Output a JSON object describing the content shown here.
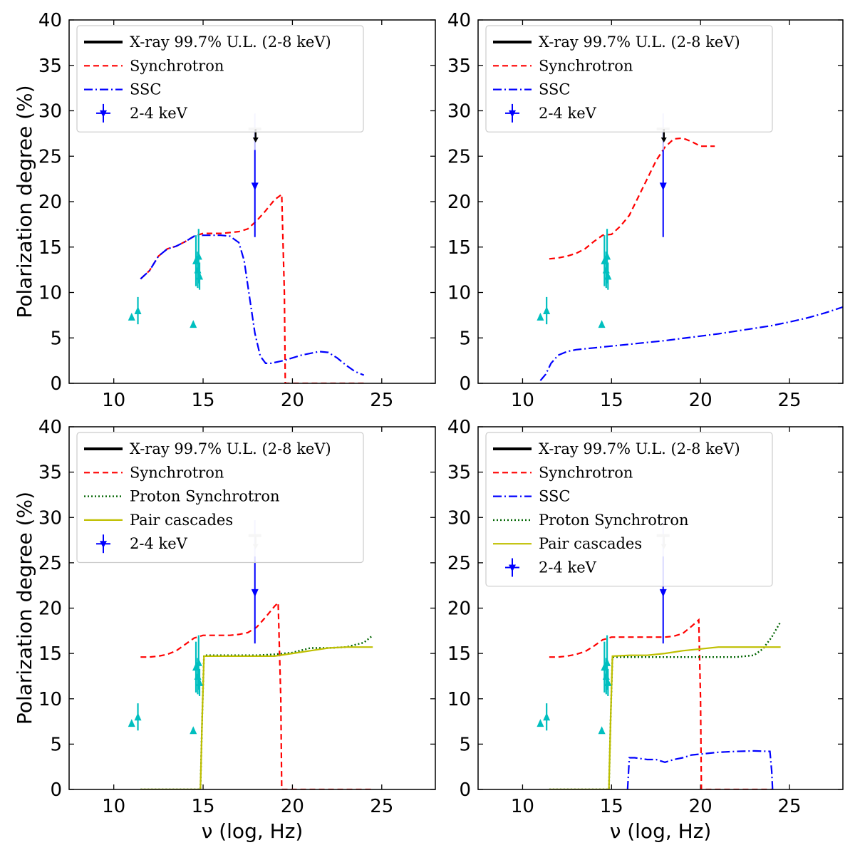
{
  "chart_data": [
    {
      "type": "line",
      "xlabel": "ν (log, Hz)",
      "ylabel": "Polarization degree (%)",
      "xlim": [
        7.5,
        28
      ],
      "ylim": [
        0,
        40
      ],
      "xticks": [
        10,
        15,
        20,
        25
      ],
      "yticks": [
        0,
        5,
        10,
        15,
        20,
        25,
        30,
        35,
        40
      ],
      "legend_position": "top-left",
      "legend": [
        {
          "label": "X-ray 99.7% U.L. (2-8 keV)",
          "style": "ul"
        },
        {
          "label": "Synchrotron",
          "style": "syn"
        },
        {
          "label": "SSC",
          "style": "ssc"
        },
        {
          "label": "2-4 keV",
          "style": "pt"
        }
      ],
      "series": [
        {
          "name": "Synchrotron",
          "style": "syn",
          "x": [
            11.5,
            12.0,
            12.5,
            13.0,
            13.5,
            14.0,
            14.5,
            15.0,
            15.5,
            16.0,
            16.5,
            17.0,
            17.5,
            18.0,
            18.5,
            19.0,
            19.4,
            19.55,
            19.6,
            24.0
          ],
          "y": [
            11.5,
            12.4,
            14.0,
            14.8,
            15.1,
            15.6,
            16.2,
            16.5,
            16.5,
            16.5,
            16.6,
            16.7,
            17.0,
            17.9,
            19.0,
            20.2,
            20.8,
            10.0,
            0,
            0
          ]
        },
        {
          "name": "SSC",
          "style": "ssc",
          "x": [
            11.5,
            12.0,
            12.5,
            13.0,
            13.5,
            14.0,
            14.5,
            15.0,
            15.5,
            16.0,
            16.5,
            17.0,
            17.3,
            17.6,
            17.9,
            18.2,
            18.5,
            18.8,
            19.5,
            20.5,
            21.5,
            22.0,
            22.5,
            23.0,
            23.5,
            24.0
          ],
          "y": [
            11.5,
            12.4,
            14.0,
            14.8,
            15.1,
            15.6,
            16.2,
            16.3,
            16.3,
            16.3,
            16.2,
            15.5,
            13.5,
            9.5,
            5.5,
            3.0,
            2.2,
            2.2,
            2.5,
            3.1,
            3.5,
            3.4,
            2.8,
            2.0,
            1.3,
            0.9
          ]
        }
      ],
      "upper_limit": {
        "x": 17.9,
        "y": 28.0
      },
      "data_2_4keV": {
        "x": 17.9,
        "y": 21.7,
        "yerr": [
          5.6,
          8.0
        ]
      },
      "optical_points": [
        {
          "x": 11.0,
          "y": 7.3,
          "err": 0
        },
        {
          "x": 11.35,
          "y": 8.0,
          "err": 1.5
        },
        {
          "x": 14.45,
          "y": 6.5,
          "err": 0
        },
        {
          "x": 14.6,
          "y": 13.5,
          "err": 2.8
        },
        {
          "x": 14.7,
          "y": 12.5,
          "err": 2.0
        },
        {
          "x": 14.75,
          "y": 14.0,
          "err": 3.0
        },
        {
          "x": 14.8,
          "y": 11.8,
          "err": 1.5
        }
      ]
    },
    {
      "type": "line",
      "xlabel": "",
      "ylabel": "",
      "xlim": [
        7.5,
        28
      ],
      "ylim": [
        0,
        40
      ],
      "xticks": [
        10,
        15,
        20,
        25
      ],
      "yticks": [
        0,
        5,
        10,
        15,
        20,
        25,
        30,
        35,
        40
      ],
      "legend_position": "top-left",
      "legend": [
        {
          "label": "X-ray 99.7% U.L. (2-8 keV)",
          "style": "ul"
        },
        {
          "label": "Synchrotron",
          "style": "syn"
        },
        {
          "label": "SSC",
          "style": "ssc"
        },
        {
          "label": "2-4 keV",
          "style": "pt"
        }
      ],
      "series": [
        {
          "name": "Synchrotron",
          "style": "syn",
          "x": [
            11.5,
            12.0,
            12.5,
            13.0,
            13.5,
            14.0,
            14.5,
            15.0,
            15.5,
            16.0,
            16.5,
            17.0,
            17.5,
            18.0,
            18.5,
            19.0,
            19.5,
            20.0,
            20.5,
            20.8
          ],
          "y": [
            13.7,
            13.8,
            14.0,
            14.3,
            14.8,
            15.6,
            16.3,
            16.4,
            17.3,
            18.5,
            20.5,
            22.5,
            24.5,
            26.0,
            26.9,
            27.0,
            26.6,
            26.1,
            26.1,
            26.1
          ]
        },
        {
          "name": "SSC",
          "style": "ssc",
          "x": [
            11.0,
            11.3,
            11.6,
            12.0,
            12.5,
            13.0,
            14.0,
            15.0,
            16.0,
            17.0,
            18.0,
            19.0,
            20.0,
            21.0,
            22.0,
            23.0,
            24.0,
            25.0,
            26.0,
            27.0,
            28.0
          ],
          "y": [
            0.3,
            1.0,
            2.2,
            3.1,
            3.5,
            3.7,
            3.9,
            4.1,
            4.3,
            4.5,
            4.7,
            4.95,
            5.2,
            5.45,
            5.75,
            6.05,
            6.35,
            6.75,
            7.2,
            7.75,
            8.4
          ]
        }
      ],
      "upper_limit": {
        "x": 17.9,
        "y": 28.0
      },
      "data_2_4keV": {
        "x": 17.9,
        "y": 21.7,
        "yerr": [
          5.6,
          8.0
        ]
      },
      "optical_points": [
        {
          "x": 11.0,
          "y": 7.3,
          "err": 0
        },
        {
          "x": 11.35,
          "y": 8.0,
          "err": 1.5
        },
        {
          "x": 14.45,
          "y": 6.5,
          "err": 0
        },
        {
          "x": 14.6,
          "y": 13.5,
          "err": 2.8
        },
        {
          "x": 14.7,
          "y": 12.5,
          "err": 2.0
        },
        {
          "x": 14.75,
          "y": 14.0,
          "err": 3.0
        },
        {
          "x": 14.8,
          "y": 11.8,
          "err": 1.5
        }
      ]
    },
    {
      "type": "line",
      "xlabel": "ν (log, Hz)",
      "ylabel": "Polarization degree (%)",
      "xlim": [
        7.5,
        28
      ],
      "ylim": [
        0,
        40
      ],
      "xticks": [
        10,
        15,
        20,
        25
      ],
      "yticks": [
        0,
        5,
        10,
        15,
        20,
        25,
        30,
        35,
        40
      ],
      "legend_position": "top-left",
      "legend": [
        {
          "label": "X-ray 99.7% U.L. (2-8 keV)",
          "style": "ul"
        },
        {
          "label": "Synchrotron",
          "style": "syn"
        },
        {
          "label": "Proton Synchrotron",
          "style": "psyn"
        },
        {
          "label": "Pair cascades",
          "style": "pair"
        },
        {
          "label": "2-4 keV",
          "style": "pt"
        }
      ],
      "series": [
        {
          "name": "Synchrotron",
          "style": "syn",
          "x": [
            11.5,
            12.0,
            12.5,
            13.0,
            13.5,
            14.0,
            14.5,
            15.0,
            15.5,
            16.0,
            16.5,
            17.0,
            17.5,
            18.0,
            18.5,
            19.0,
            19.2,
            19.35,
            19.4,
            24.5
          ],
          "y": [
            14.6,
            14.6,
            14.7,
            14.9,
            15.3,
            16.0,
            16.7,
            17.0,
            17.0,
            17.0,
            17.0,
            17.1,
            17.3,
            17.9,
            19.0,
            20.2,
            20.6,
            10.0,
            0,
            0
          ]
        },
        {
          "name": "Proton Synchrotron",
          "style": "psyn",
          "x": [
            11.5,
            14.85,
            14.95,
            15.05,
            16.0,
            17.0,
            18.0,
            19.0,
            20.0,
            21.0,
            22.0,
            23.0,
            24.0,
            24.5
          ],
          "y": [
            0,
            0,
            8.0,
            14.8,
            14.8,
            14.8,
            14.8,
            14.9,
            15.1,
            15.6,
            15.6,
            15.7,
            16.2,
            17.0
          ]
        },
        {
          "name": "Pair cascades",
          "style": "pair",
          "x": [
            11.5,
            14.85,
            14.95,
            15.05,
            16.0,
            17.0,
            18.0,
            19.0,
            20.0,
            21.0,
            22.0,
            23.0,
            24.0,
            24.5
          ],
          "y": [
            0,
            0,
            8.0,
            14.7,
            14.7,
            14.7,
            14.7,
            14.7,
            15.0,
            15.3,
            15.6,
            15.7,
            15.7,
            15.7
          ]
        }
      ],
      "upper_limit": {
        "x": 17.9,
        "y": 28.0
      },
      "data_2_4keV": {
        "x": 17.9,
        "y": 21.7,
        "yerr": [
          5.6,
          8.0
        ]
      },
      "optical_points": [
        {
          "x": 11.0,
          "y": 7.3,
          "err": 0
        },
        {
          "x": 11.35,
          "y": 8.0,
          "err": 1.5
        },
        {
          "x": 14.45,
          "y": 6.5,
          "err": 0
        },
        {
          "x": 14.6,
          "y": 13.5,
          "err": 2.8
        },
        {
          "x": 14.7,
          "y": 12.5,
          "err": 2.0
        },
        {
          "x": 14.75,
          "y": 14.0,
          "err": 3.0
        },
        {
          "x": 14.8,
          "y": 11.8,
          "err": 1.5
        }
      ]
    },
    {
      "type": "line",
      "xlabel": "ν (log, Hz)",
      "ylabel": "",
      "xlim": [
        7.5,
        28
      ],
      "ylim": [
        0,
        40
      ],
      "xticks": [
        10,
        15,
        20,
        25
      ],
      "yticks": [
        0,
        5,
        10,
        15,
        20,
        25,
        30,
        35,
        40
      ],
      "legend_position": "top-left",
      "legend": [
        {
          "label": "X-ray 99.7% U.L. (2-8 keV)",
          "style": "ul"
        },
        {
          "label": "Synchrotron",
          "style": "syn"
        },
        {
          "label": "SSC",
          "style": "ssc"
        },
        {
          "label": "Proton Synchrotron",
          "style": "psyn"
        },
        {
          "label": "Pair cascades",
          "style": "pair"
        },
        {
          "label": "2-4 keV",
          "style": "pt"
        }
      ],
      "series": [
        {
          "name": "Synchrotron",
          "style": "syn",
          "x": [
            11.5,
            12.0,
            12.5,
            13.0,
            13.5,
            14.0,
            14.5,
            15.0,
            15.5,
            16.0,
            17.0,
            18.0,
            18.5,
            19.0,
            19.5,
            19.9,
            20.0,
            20.05,
            24.0
          ],
          "y": [
            14.6,
            14.6,
            14.7,
            14.9,
            15.2,
            15.8,
            16.5,
            16.8,
            16.8,
            16.8,
            16.8,
            16.8,
            16.9,
            17.2,
            18.0,
            18.7,
            10.0,
            0,
            0
          ]
        },
        {
          "name": "SSC",
          "style": "ssc",
          "x": [
            15.9,
            16.0,
            16.3,
            17.0,
            17.5,
            18.0,
            18.5,
            19.0,
            19.5,
            20.0,
            21.0,
            22.0,
            23.0,
            23.9,
            24.0,
            24.05
          ],
          "y": [
            0,
            3.5,
            3.5,
            3.3,
            3.3,
            3.0,
            3.3,
            3.5,
            3.8,
            3.9,
            4.1,
            4.2,
            4.25,
            4.2,
            2.0,
            0
          ]
        },
        {
          "name": "Proton Synchrotron",
          "style": "psyn",
          "x": [
            11.5,
            14.85,
            14.95,
            15.05,
            16.0,
            17.0,
            18.0,
            19.0,
            20.0,
            21.0,
            22.0,
            23.0,
            23.5,
            24.0,
            24.5
          ],
          "y": [
            0,
            0,
            8.0,
            14.6,
            14.6,
            14.6,
            14.6,
            14.6,
            14.6,
            14.6,
            14.6,
            14.8,
            15.5,
            16.8,
            18.5
          ]
        },
        {
          "name": "Pair cascades",
          "style": "pair",
          "x": [
            11.5,
            14.85,
            14.95,
            15.05,
            16.0,
            17.0,
            18.0,
            19.0,
            20.0,
            21.0,
            22.0,
            23.0,
            24.0,
            24.5
          ],
          "y": [
            0,
            0,
            8.0,
            14.7,
            14.8,
            14.8,
            15.0,
            15.3,
            15.5,
            15.7,
            15.7,
            15.7,
            15.7,
            15.7
          ]
        }
      ],
      "upper_limit": {
        "x": 17.9,
        "y": 28.0
      },
      "data_2_4keV": {
        "x": 17.9,
        "y": 21.7,
        "yerr": [
          5.6,
          8.0
        ]
      },
      "optical_points": [
        {
          "x": 11.0,
          "y": 7.3,
          "err": 0
        },
        {
          "x": 11.35,
          "y": 8.0,
          "err": 1.5
        },
        {
          "x": 14.45,
          "y": 6.5,
          "err": 0
        },
        {
          "x": 14.6,
          "y": 13.5,
          "err": 2.8
        },
        {
          "x": 14.7,
          "y": 12.5,
          "err": 2.0
        },
        {
          "x": 14.75,
          "y": 14.0,
          "err": 3.0
        },
        {
          "x": 14.8,
          "y": 11.8,
          "err": 1.5
        }
      ]
    }
  ],
  "colors": {
    "synchrotron": "#ff0000",
    "ssc": "#0000ff",
    "proton_synchrotron": "#006400",
    "pair_cascades": "#bfbf00",
    "data_2_4keV": "#0000ff",
    "optical": "#00bfbf",
    "upper_limit": "#000000",
    "upper_limit_faded": "#c0c0c0"
  }
}
